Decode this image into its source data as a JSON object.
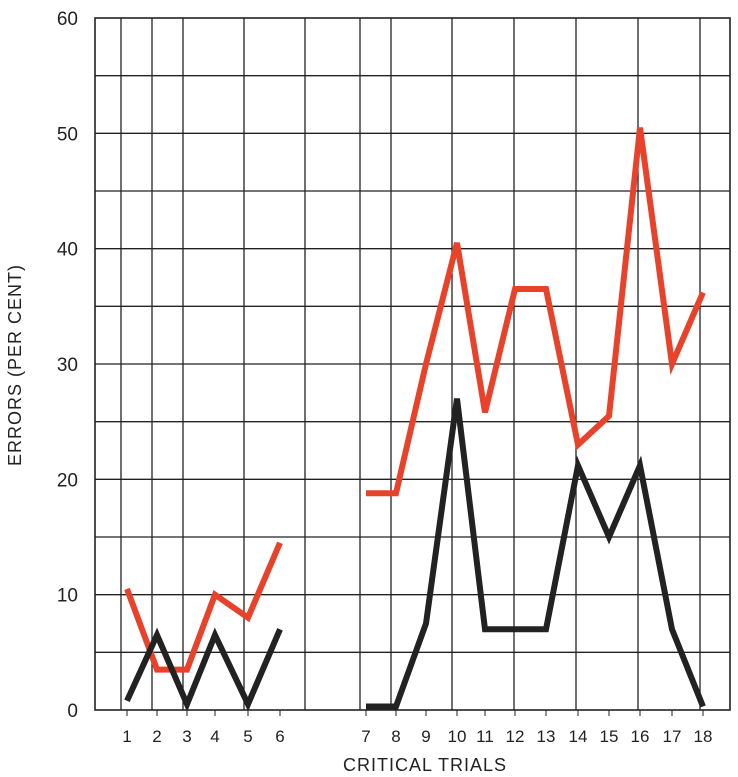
{
  "chart_data": {
    "type": "line",
    "title": "",
    "xlabel": "CRITICAL TRIALS",
    "ylabel": "ERRORS (PER CENT)",
    "ylim": [
      0,
      60
    ],
    "yticks": [
      "0",
      "10",
      "20",
      "30",
      "40",
      "50",
      "60"
    ],
    "x": [
      "1",
      "2",
      "3",
      "4",
      "5",
      "6",
      "7",
      "8",
      "9",
      "10",
      "11",
      "12",
      "13",
      "14",
      "15",
      "16",
      "17",
      "18"
    ],
    "grid": true,
    "series": [
      {
        "color": "#e8432a",
        "segments": [
          {
            "x": [
              1,
              2,
              3,
              4,
              5,
              6
            ],
            "y": [
              10.5,
              3.5,
              3.5,
              10,
              8,
              14.5
            ]
          },
          {
            "x": [
              7,
              8,
              9,
              10,
              11,
              12,
              13,
              14,
              15,
              16,
              17,
              18
            ],
            "y": [
              18.8,
              18.8,
              30,
              40.5,
              25.8,
              36.5,
              36.5,
              23,
              25.5,
              50.5,
              30,
              36.2
            ]
          }
        ]
      },
      {
        "color": "#222222",
        "segments": [
          {
            "x": [
              1,
              2,
              3,
              4,
              5,
              6
            ],
            "y": [
              0.8,
              6.5,
              0.5,
              6.5,
              0.5,
              7
            ]
          },
          {
            "x": [
              7,
              8,
              9,
              10,
              11,
              12,
              13,
              14,
              15,
              16,
              17,
              18
            ],
            "y": [
              0.3,
              0.3,
              7.5,
              27,
              7,
              7,
              7,
              21.2,
              15,
              21.2,
              7,
              0.3
            ]
          }
        ]
      }
    ]
  }
}
